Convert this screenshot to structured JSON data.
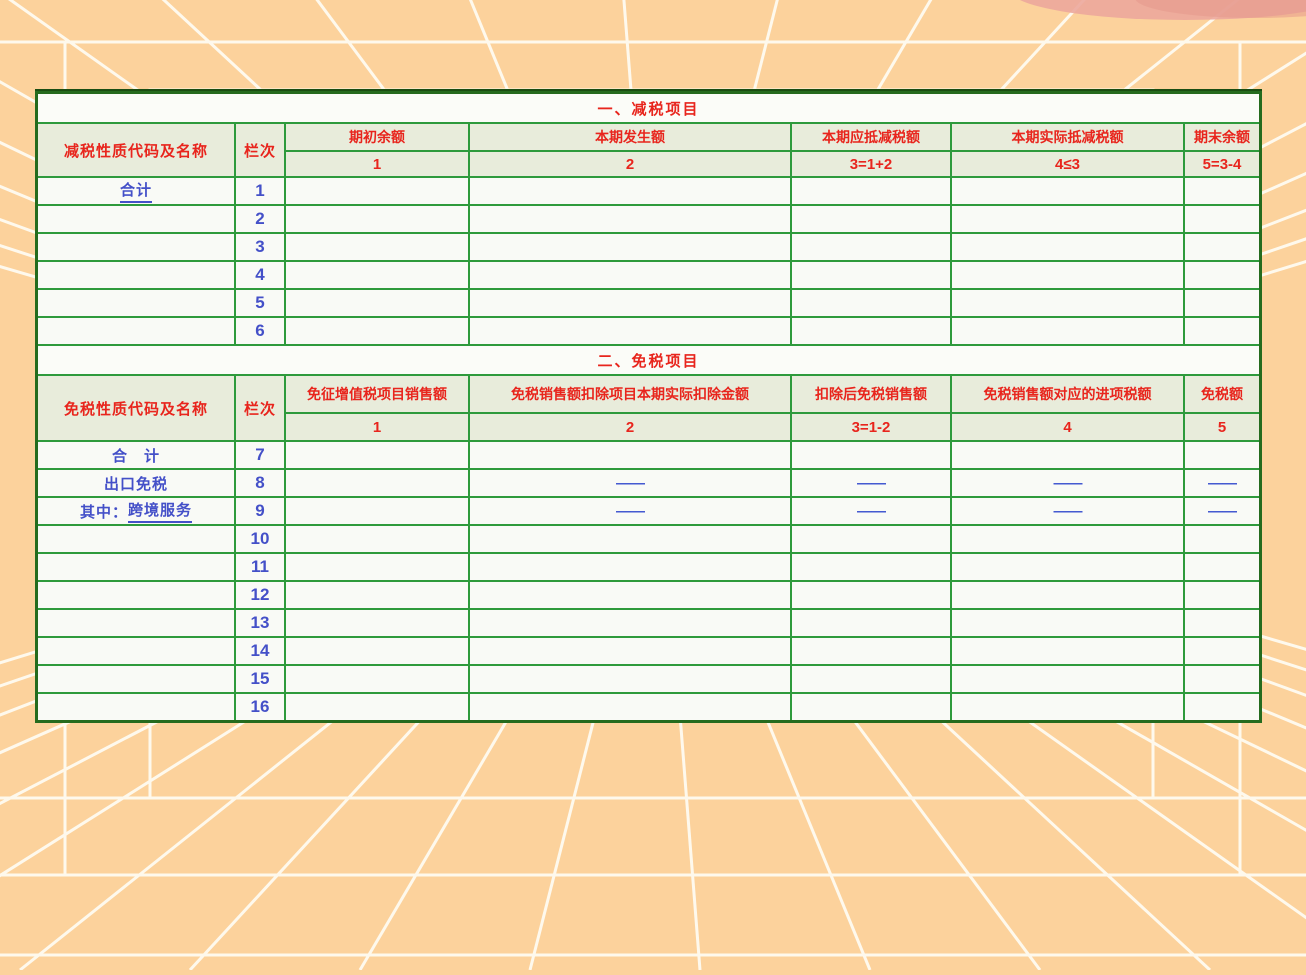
{
  "page": {
    "background_color": "#fcd29c",
    "grid_line_color": "#fffdf4",
    "accent_blob_color": "#eca79c"
  },
  "table": {
    "border_color": "#256b1e",
    "grid_color": "#2e9a3c",
    "header_bg": "#e8ecdb",
    "header_text_color": "#e8251d",
    "value_text_color": "#4450c8",
    "section1": {
      "title": "一、减税项目",
      "name_header": "减税性质代码及名称",
      "lane_header": "栏次",
      "columns": [
        {
          "label": "期初余额",
          "code": "1"
        },
        {
          "label": "本期发生额",
          "code": "2"
        },
        {
          "label": "本期应抵减税额",
          "code": "3=1+2"
        },
        {
          "label": "本期实际抵减税额",
          "code": "4≤3"
        },
        {
          "label": "期末余额",
          "code": "5=3-4"
        }
      ],
      "rows": [
        {
          "label": "合计",
          "label_underline": true,
          "no": "1",
          "values": [
            "",
            "",
            "",
            "",
            ""
          ]
        },
        {
          "label": "",
          "no": "2",
          "values": [
            "",
            "",
            "",
            "",
            ""
          ]
        },
        {
          "label": "",
          "no": "3",
          "values": [
            "",
            "",
            "",
            "",
            ""
          ]
        },
        {
          "label": "",
          "no": "4",
          "values": [
            "",
            "",
            "",
            "",
            ""
          ]
        },
        {
          "label": "",
          "no": "5",
          "values": [
            "",
            "",
            "",
            "",
            ""
          ]
        },
        {
          "label": "",
          "no": "6",
          "values": [
            "",
            "",
            "",
            "",
            ""
          ]
        }
      ]
    },
    "section2": {
      "title": "二、免税项目",
      "name_header": "免税性质代码及名称",
      "lane_header": "栏次",
      "columns": [
        {
          "label": "免征增值税项目销售额",
          "code": "1"
        },
        {
          "label": "免税销售额扣除项目本期实际扣除金额",
          "code": "2"
        },
        {
          "label": "扣除后免税销售额",
          "code": "3=1-2"
        },
        {
          "label": "免税销售额对应的进项税额",
          "code": "4"
        },
        {
          "label": "免税额",
          "code": "5"
        }
      ],
      "rows": [
        {
          "label": "合　计",
          "no": "7",
          "values": [
            "",
            "",
            "",
            "",
            ""
          ]
        },
        {
          "label": "出口免税",
          "no": "8",
          "values": [
            "",
            "——",
            "——",
            "——",
            "——"
          ]
        },
        {
          "label_prefix": "其中：",
          "label": "跨境服务",
          "label_underline": true,
          "no": "9",
          "values": [
            "",
            "——",
            "——",
            "——",
            "——"
          ]
        },
        {
          "label": "",
          "no": "10",
          "values": [
            "",
            "",
            "",
            "",
            ""
          ]
        },
        {
          "label": "",
          "no": "11",
          "values": [
            "",
            "",
            "",
            "",
            ""
          ]
        },
        {
          "label": "",
          "no": "12",
          "values": [
            "",
            "",
            "",
            "",
            ""
          ]
        },
        {
          "label": "",
          "no": "13",
          "values": [
            "",
            "",
            "",
            "",
            ""
          ]
        },
        {
          "label": "",
          "no": "14",
          "values": [
            "",
            "",
            "",
            "",
            ""
          ]
        },
        {
          "label": "",
          "no": "15",
          "values": [
            "",
            "",
            "",
            "",
            ""
          ]
        },
        {
          "label": "",
          "no": "16",
          "values": [
            "",
            "",
            "",
            "",
            ""
          ]
        }
      ]
    }
  }
}
